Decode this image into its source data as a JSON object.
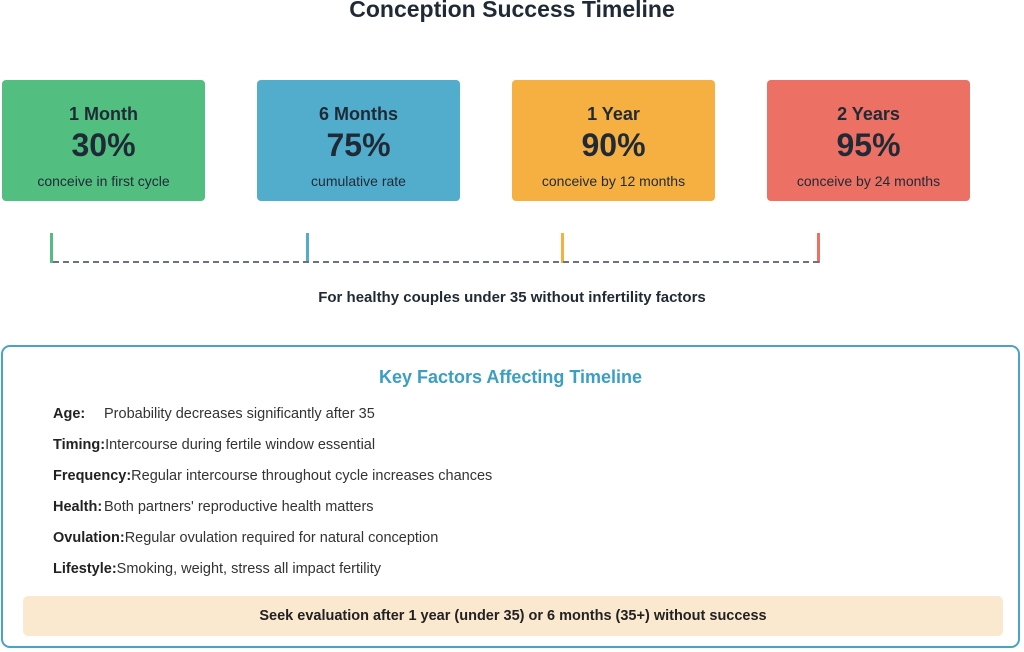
{
  "title": "Conception Success Timeline",
  "milestones": [
    {
      "period": "1 Month",
      "percent": "30%",
      "description": "conceive in first cycle",
      "color": "#52BE80"
    },
    {
      "period": "6 Months",
      "percent": "75%",
      "description": "cumulative rate",
      "color": "#52ADCC"
    },
    {
      "period": "1 Year",
      "percent": "90%",
      "description": "conceive by 12 months",
      "color": "#F5B041"
    },
    {
      "period": "2 Years",
      "percent": "95%",
      "description": "conceive by 24 months",
      "color": "#EC7063"
    }
  ],
  "timeline_note": "For healthy couples under 35 without infertility factors",
  "factors_panel": {
    "title": "Key Factors Affecting Timeline",
    "factors": [
      {
        "label": "Age:",
        "text": "Probability decreases significantly after 35"
      },
      {
        "label": "Timing:",
        "text": "Intercourse during fertile window essential"
      },
      {
        "label": "Frequency:",
        "text": "Regular intercourse throughout cycle increases chances"
      },
      {
        "label": "Health:",
        "text": "Both partners' reproductive health matters"
      },
      {
        "label": "Ovulation:",
        "text": "Regular ovulation required for natural conception"
      },
      {
        "label": "Lifestyle:",
        "text": "Smoking, weight, stress all impact fertility"
      }
    ],
    "callout": "Seek evaluation after 1 year (under 35) or 6 months (35+) without success"
  }
}
